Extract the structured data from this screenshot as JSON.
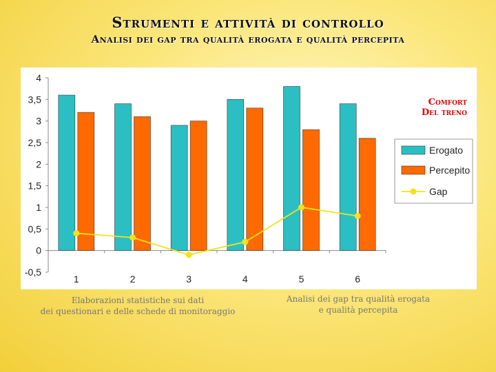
{
  "header": {
    "title": "Strumenti e attività di controllo",
    "subtitle": "Analisi dei gap tra qualità erogata e qualità percepita"
  },
  "chart_data": {
    "type": "bar",
    "title_lines": [
      "Comfort",
      "Del treno"
    ],
    "categories": [
      "1",
      "2",
      "3",
      "4",
      "5",
      "6"
    ],
    "series": [
      {
        "name": "Erogato",
        "kind": "bar",
        "color": "#2bbfc4",
        "values": [
          3.6,
          3.4,
          2.9,
          3.5,
          3.8,
          3.4
        ]
      },
      {
        "name": "Percepito",
        "kind": "bar",
        "color": "#ff6a00",
        "values": [
          3.2,
          3.1,
          3.0,
          3.3,
          2.8,
          2.6
        ]
      },
      {
        "name": "Gap",
        "kind": "line",
        "color": "#f2e21a",
        "values": [
          0.4,
          0.3,
          -0.1,
          0.2,
          1.0,
          0.8
        ]
      }
    ],
    "y_ticks": [
      "4",
      "3,5",
      "3",
      "2,5",
      "2",
      "1,5",
      "1",
      "0,5",
      "0",
      "-0,5"
    ],
    "ylim": [
      -0.5,
      4
    ],
    "legend_position": "right",
    "xlabel": "",
    "ylabel": ""
  },
  "notes": {
    "left": [
      "Elaborazioni statistiche sui dati",
      "dei questionari e delle schede di monitoraggio"
    ],
    "right": [
      "Analisi dei gap tra qualità erogata",
      "e qualità percepita"
    ]
  }
}
